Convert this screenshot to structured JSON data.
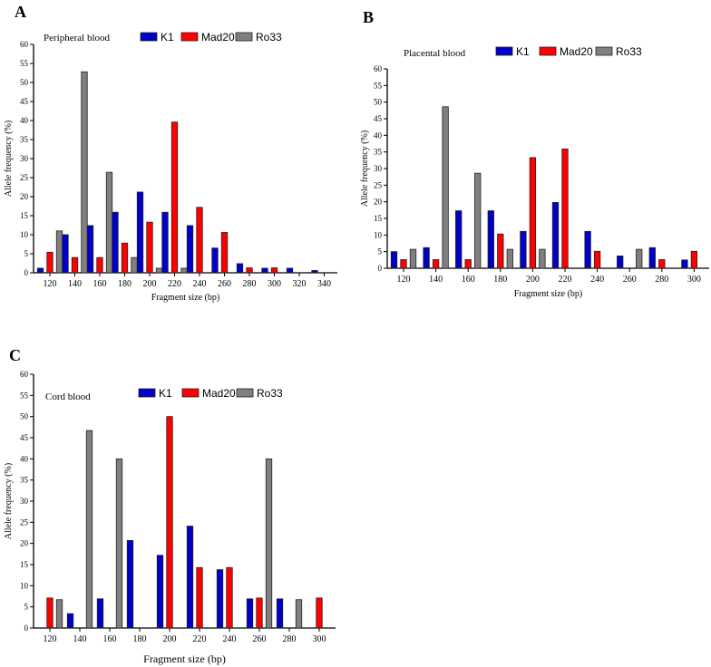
{
  "chart_data": [
    {
      "type": "bar",
      "panel_label": "A",
      "title": "Peripheral blood",
      "xlabel": "Fragment size (bp)",
      "ylabel": "Allele frequency (%)",
      "ylim": [
        0,
        60
      ],
      "yticks": [
        0,
        5,
        10,
        15,
        20,
        25,
        30,
        35,
        40,
        45,
        50,
        55,
        60
      ],
      "categories": [
        "120",
        "140",
        "160",
        "180",
        "200",
        "220",
        "240",
        "260",
        "280",
        "300",
        "320",
        "340"
      ],
      "series": [
        {
          "name": "K1",
          "color": "#0000c8",
          "values": [
            1.2,
            10,
            12.4,
            15.9,
            21.2,
            15.9,
            12.4,
            6.5,
            2.4,
            1.2,
            1.2,
            0.6
          ]
        },
        {
          "name": "Mad20",
          "color": "#ff0000",
          "values": [
            5.4,
            4,
            4,
            7.8,
            13.3,
            39.6,
            17.2,
            10.6,
            1.3,
            1.3,
            0,
            0
          ]
        },
        {
          "name": "Ro33",
          "color": "#808080",
          "values": [
            11,
            52.8,
            26.4,
            4,
            1.2,
            1.2,
            0,
            0,
            0,
            0,
            0,
            0
          ]
        }
      ]
    },
    {
      "type": "bar",
      "panel_label": "B",
      "title": "Placental blood",
      "xlabel": "Fragment size (bp)",
      "ylabel": "Allele frequency (%)",
      "ylim": [
        0,
        60
      ],
      "yticks": [
        0,
        5,
        10,
        15,
        20,
        25,
        30,
        35,
        40,
        45,
        50,
        55,
        60
      ],
      "categories": [
        "120",
        "140",
        "160",
        "180",
        "200",
        "220",
        "240",
        "260",
        "280",
        "300"
      ],
      "series": [
        {
          "name": "K1",
          "color": "#0000c8",
          "values": [
            5,
            6.2,
            17.3,
            17.3,
            11.1,
            19.8,
            11.1,
            3.7,
            6.2,
            2.5
          ]
        },
        {
          "name": "Mad20",
          "color": "#ff0000",
          "values": [
            2.6,
            2.6,
            2.6,
            10.3,
            33.3,
            35.9,
            5.1,
            0,
            2.6,
            5.1
          ]
        },
        {
          "name": "Ro33",
          "color": "#808080",
          "values": [
            5.7,
            48.6,
            28.6,
            5.7,
            5.7,
            0,
            0,
            5.7,
            0,
            0
          ]
        }
      ]
    },
    {
      "type": "bar",
      "panel_label": "C",
      "title": "Cord blood",
      "xlabel": "Fragment size (bp)",
      "ylabel": "Allele frequency (%)",
      "ylim": [
        0,
        60
      ],
      "yticks": [
        0,
        5,
        10,
        15,
        20,
        25,
        30,
        35,
        40,
        45,
        50,
        55,
        60
      ],
      "categories": [
        "120",
        "140",
        "160",
        "180",
        "200",
        "220",
        "240",
        "260",
        "280",
        "300"
      ],
      "series": [
        {
          "name": "K1",
          "color": "#0000c8",
          "values": [
            0,
            3.4,
            6.9,
            20.7,
            17.2,
            24.1,
            13.8,
            6.9,
            6.9,
            0
          ]
        },
        {
          "name": "Mad20",
          "color": "#ff0000",
          "values": [
            7.1,
            0,
            0,
            0,
            50,
            14.3,
            14.3,
            7.1,
            0,
            7.1
          ]
        },
        {
          "name": "Ro33",
          "color": "#808080",
          "values": [
            6.7,
            46.7,
            40,
            0,
            0,
            0,
            0,
            40,
            6.7,
            0
          ]
        }
      ]
    }
  ]
}
